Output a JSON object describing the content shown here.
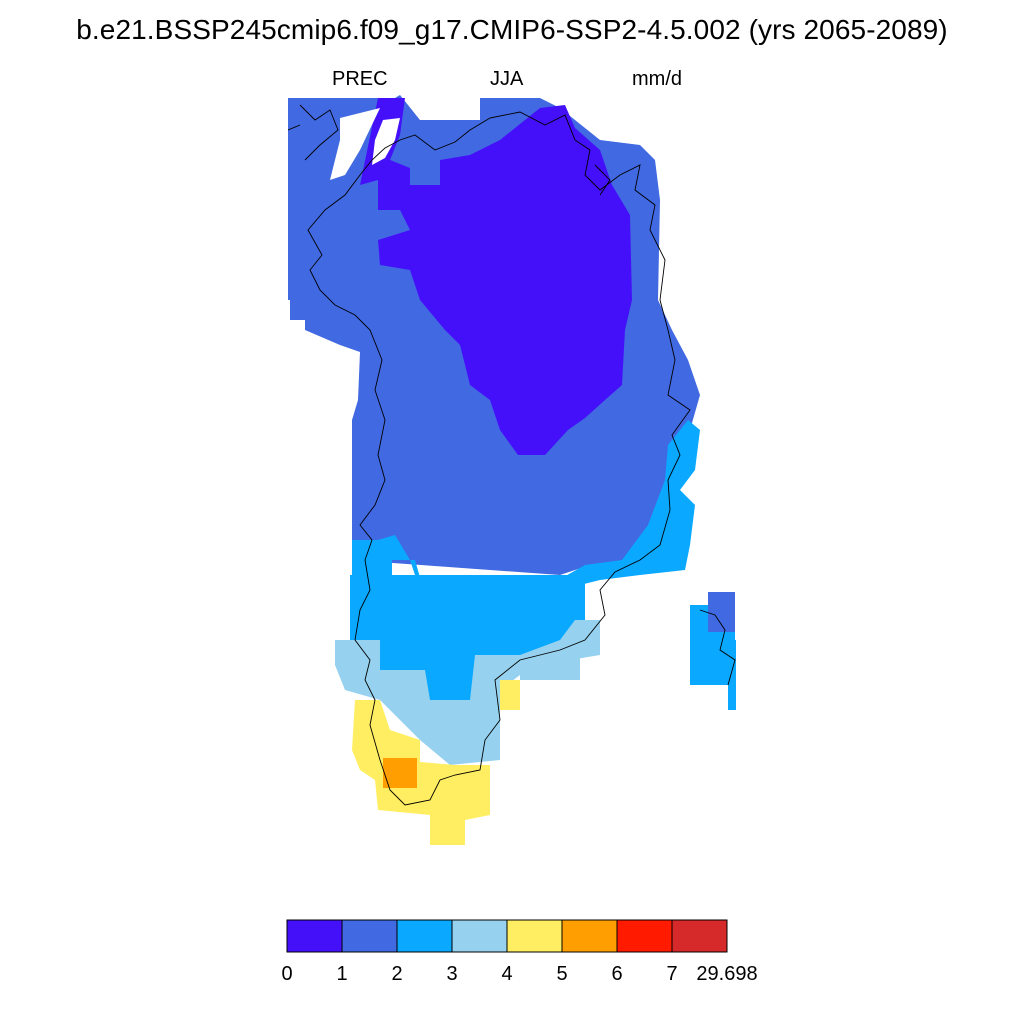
{
  "title": "b.e21.BSSP245cmip6.f09_g17.CMIP6-SSP2-4.5.002 (yrs 2065-2089)",
  "subtitle": {
    "left": "PREC",
    "center": "JJA",
    "right": "mm/d"
  },
  "colors": {
    "c0": "#4410fa",
    "c1": "#4169e1",
    "c2": "#0aa8ff",
    "c3": "#96d2f0",
    "c4": "#ffee61",
    "c5": "#ff9e00",
    "c6": "#ff1a00",
    "c7": "#d62a2a"
  },
  "colorbar": {
    "labels": [
      "0",
      "1",
      "2",
      "3",
      "4",
      "5",
      "6",
      "7",
      "29.698"
    ],
    "bins": [
      "c0",
      "c1",
      "c2",
      "c3",
      "c4",
      "c5",
      "c6",
      "c7"
    ]
  },
  "chart_data": {
    "type": "heatmap",
    "variable": "PREC",
    "season": "JJA",
    "units": "mm/d",
    "levels": [
      0,
      1,
      2,
      3,
      4,
      5,
      6,
      7,
      29.698
    ],
    "region_values_mm_per_day": [
      {
        "bin": "0-1",
        "area": "central-north interior"
      },
      {
        "bin": "1-2",
        "area": "north, west and interior"
      },
      {
        "bin": "2-3",
        "area": "east coast and southern interior"
      },
      {
        "bin": "3-4",
        "area": "southwest and south"
      },
      {
        "bin": "4-5",
        "area": "southern tip"
      },
      {
        "bin": "5-6",
        "area": "single cell near southern tip"
      }
    ]
  }
}
